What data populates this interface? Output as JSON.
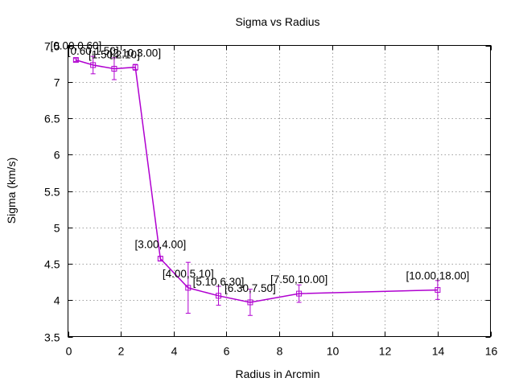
{
  "chart_data": {
    "type": "line",
    "title": "Sigma vs Radius",
    "xlabel": "Radius in Arcmin",
    "ylabel": "Sigma (km/s)",
    "xlim": [
      0,
      16
    ],
    "ylim": [
      3.5,
      7.5
    ],
    "xticks": [
      "0",
      "2",
      "4",
      "6",
      "8",
      "10",
      "12",
      "14",
      "16"
    ],
    "yticks": [
      "3.5",
      "4",
      "4.5",
      "5",
      "5.5",
      "6",
      "6.5",
      "7",
      "7.5"
    ],
    "grid": true,
    "legend": "none",
    "color": "#b000d0",
    "marker": "open-square",
    "error_bars": true,
    "points": [
      {
        "x": 0.3,
        "y": 7.3,
        "err": 0.02,
        "label": "[0.00,0.60]"
      },
      {
        "x": 0.95,
        "y": 7.23,
        "err": 0.12,
        "label": "[0.60,1.50]"
      },
      {
        "x": 1.75,
        "y": 7.18,
        "err": 0.15,
        "label": "[1.50,2.10]"
      },
      {
        "x": 2.55,
        "y": 7.2,
        "err": 0.04,
        "label": "[2.10,3.00]"
      },
      {
        "x": 3.5,
        "y": 4.57,
        "err": 0.03,
        "label": "[3.00,4.00]"
      },
      {
        "x": 4.55,
        "y": 4.17,
        "err": 0.35,
        "label": "[4.00,5.10]"
      },
      {
        "x": 5.7,
        "y": 4.06,
        "err": 0.13,
        "label": "[5.10,6.30]"
      },
      {
        "x": 6.9,
        "y": 3.97,
        "err": 0.18,
        "label": "[6.30,7.50]"
      },
      {
        "x": 8.75,
        "y": 4.09,
        "err": 0.12,
        "label": "[7.50,10.00]"
      },
      {
        "x": 14.0,
        "y": 4.14,
        "err": 0.13,
        "label": "[10.00,18.00]"
      }
    ]
  }
}
